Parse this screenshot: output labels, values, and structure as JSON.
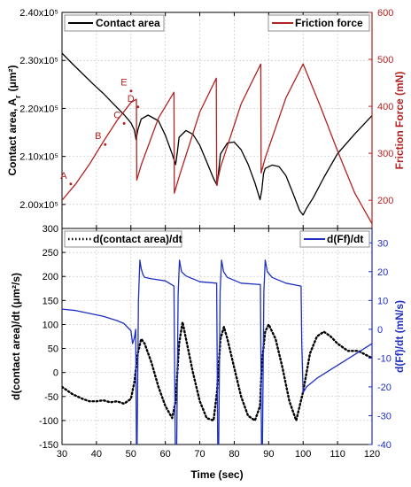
{
  "colors": {
    "black": "#000000",
    "red": "#b22222",
    "blue": "#1f2fbf",
    "grid": "#c8c8c8"
  },
  "chart_data": [
    {
      "type": "line",
      "xlim": [
        30,
        120
      ],
      "left_axis": {
        "label": "Contact area, A",
        "label_sub": "r",
        "label_unit": "(μm²)",
        "ylim": [
          195000,
          240000
        ],
        "ticks": [
          {
            "v": 200000,
            "label": "2.00x10⁵"
          },
          {
            "v": 210000,
            "label": "2.10x10⁵"
          },
          {
            "v": 220000,
            "label": "2.20x10⁵"
          },
          {
            "v": 230000,
            "label": "2.30x10⁵"
          },
          {
            "v": 240000,
            "label": "2.40x10⁵"
          }
        ]
      },
      "right_axis": {
        "label": "Friction Force (mN)",
        "ylim": [
          140,
          600
        ],
        "ticks": [
          200,
          300,
          400,
          500,
          600
        ]
      },
      "grid": true,
      "legend": [
        {
          "name": "Contact area",
          "color": "#000000",
          "position": "top-left"
        },
        {
          "name": "Friction force",
          "color": "#b22222",
          "position": "top-right"
        }
      ],
      "series": [
        {
          "name": "Contact area",
          "axis": "left",
          "x": [
            30,
            33,
            36,
            39,
            42,
            45,
            48,
            50,
            51,
            51.5,
            52,
            53,
            55,
            58,
            60,
            62,
            63,
            63.5,
            64,
            66,
            68,
            70,
            72,
            74,
            75,
            75.5,
            76,
            78,
            80,
            82,
            84,
            86,
            87.5,
            88,
            88.5,
            89,
            91,
            93,
            95,
            97,
            99,
            100,
            101,
            103,
            106,
            110,
            115,
            120
          ],
          "y": [
            231500,
            229300,
            227200,
            225100,
            223100,
            220900,
            218700,
            217000,
            215500,
            213500,
            215500,
            217800,
            218600,
            217400,
            214400,
            210500,
            208300,
            211000,
            214000,
            215400,
            214600,
            212300,
            208900,
            205400,
            204000,
            207000,
            210500,
            212800,
            213000,
            211400,
            208400,
            204500,
            201000,
            203000,
            206400,
            207500,
            208200,
            207900,
            206000,
            202400,
            198700,
            197800,
            199200,
            201500,
            205600,
            210600,
            214700,
            218500
          ]
        },
        {
          "name": "Friction force",
          "axis": "right",
          "x": [
            30,
            34,
            38,
            42,
            46,
            50,
            51.6,
            51.7,
            53,
            58,
            62.5,
            62.6,
            64,
            70,
            74.8,
            74.9,
            76,
            82,
            87.7,
            87.8,
            89,
            95,
            100,
            105,
            110,
            115,
            120
          ],
          "y": [
            200,
            235,
            277,
            325,
            370,
            408,
            415,
            243,
            275,
            375,
            430,
            215,
            250,
            388,
            460,
            232,
            270,
            405,
            490,
            258,
            290,
            418,
            490,
            400,
            305,
            215,
            150
          ]
        }
      ],
      "annotations": [
        {
          "text": "A",
          "x": 31,
          "y_right": 246
        },
        {
          "text": "B",
          "x": 41,
          "y_right": 330
        },
        {
          "text": "C",
          "x": 46.5,
          "y_right": 375
        },
        {
          "text": "D",
          "x": 50.5,
          "y_right": 410
        },
        {
          "text": "E",
          "x": 48.5,
          "y_right": 444
        }
      ]
    },
    {
      "type": "line",
      "xlim": [
        30,
        120
      ],
      "xlabel": "Time (sec)",
      "xticks": [
        30,
        40,
        50,
        60,
        70,
        80,
        90,
        100,
        110,
        120
      ],
      "left_axis": {
        "label": "d(contact area)/dt (μm²/s)",
        "ylim": [
          -150,
          300
        ],
        "ticks": [
          -150,
          -100,
          -50,
          0,
          50,
          100,
          150,
          200,
          250,
          300
        ]
      },
      "right_axis": {
        "label": "d(Ff)/dt (mN/s)",
        "ylim": [
          -40,
          35
        ],
        "ticks": [
          -40,
          -30,
          -20,
          -10,
          0,
          10,
          20,
          30
        ]
      },
      "grid": true,
      "legend": [
        {
          "name": "d(contact area)/dt",
          "color": "#000000",
          "style": "dotted",
          "position": "top-left"
        },
        {
          "name": "d(Ff)/dt",
          "color": "#1f2fbf",
          "position": "top-right"
        }
      ],
      "series": [
        {
          "name": "d(contact area)/dt",
          "axis": "left",
          "style": "dotted",
          "x": [
            30,
            33,
            36,
            38,
            40,
            42,
            44,
            46,
            48,
            50,
            51,
            52,
            53,
            54,
            56,
            58,
            60,
            62,
            63,
            64,
            65,
            66,
            68,
            70,
            72,
            74,
            75,
            76,
            77,
            78,
            80,
            82,
            84,
            86,
            87.5,
            88,
            89,
            90,
            92,
            94,
            96,
            98,
            99,
            100,
            101,
            102,
            104,
            106,
            108,
            110,
            113,
            116,
            120
          ],
          "y": [
            -30,
            -45,
            -55,
            -60,
            -60,
            -58,
            -62,
            -60,
            -65,
            -55,
            -20,
            40,
            70,
            60,
            20,
            -30,
            -70,
            -95,
            -60,
            60,
            105,
            70,
            0,
            -60,
            -95,
            -100,
            -40,
            70,
            95,
            70,
            10,
            -50,
            -90,
            -100,
            -70,
            20,
            85,
            100,
            70,
            10,
            -60,
            -100,
            -70,
            -40,
            0,
            40,
            75,
            85,
            75,
            60,
            45,
            45,
            30
          ]
        },
        {
          "name": "d(Ff)/dt",
          "axis": "right",
          "x": [
            30,
            34,
            38,
            42,
            46,
            48,
            50,
            50.5,
            51,
            51.4,
            51.6,
            51.8,
            52.2,
            52.6,
            53,
            53.5,
            54,
            56,
            60,
            62.5,
            62.9,
            63.3,
            63.7,
            64.1,
            64.7,
            66,
            70,
            74.9,
            75.2,
            75.5,
            75.9,
            76.3,
            76.9,
            78,
            82,
            87.6,
            87.9,
            88.2,
            88.6,
            89,
            89.6,
            91,
            95,
            99.4,
            99.6,
            100,
            101,
            104,
            108,
            112,
            116,
            120
          ],
          "y": [
            7,
            6.5,
            5.5,
            4.5,
            3,
            2,
            -0.5,
            -5,
            -3,
            0,
            -40,
            -40,
            10,
            24,
            21,
            19,
            18,
            17.5,
            16.8,
            15,
            -40,
            -40,
            12,
            24,
            20,
            18.5,
            16.5,
            16,
            -40,
            -40,
            13,
            24,
            20,
            18,
            16,
            15.5,
            -40,
            -40,
            13,
            24,
            20,
            18,
            16,
            15,
            -5,
            -22,
            -20,
            -17,
            -14,
            -11,
            -8,
            -5
          ]
        }
      ]
    }
  ]
}
